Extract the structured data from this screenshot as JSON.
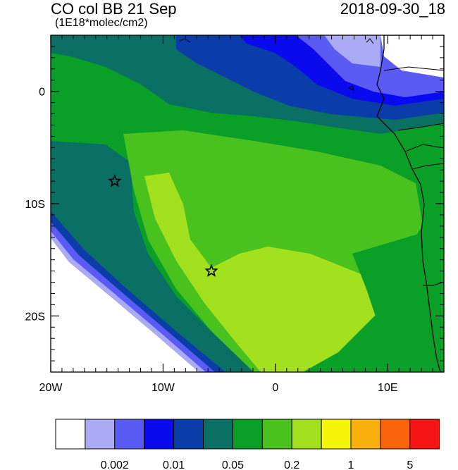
{
  "title": {
    "left": "CO col BB 21 Sep",
    "right": "2018-09-30_18",
    "units": "(1E18*molec/cm2)"
  },
  "map": {
    "lon_range": [
      -20,
      15
    ],
    "lat_range": [
      -25,
      5
    ],
    "x_ticks": [
      "20W",
      "10W",
      "0",
      "10E"
    ],
    "y_ticks": [
      "0",
      "10S",
      "20S"
    ],
    "markers": [
      {
        "name": "star-marker-1",
        "lon": -14.3,
        "lat": -8.0
      },
      {
        "name": "star-marker-2",
        "lon": -5.7,
        "lat": -16.0
      }
    ]
  },
  "colorbar": {
    "colors": [
      "#ffffff",
      "#aaaaf5",
      "#5a5af5",
      "#0a0aee",
      "#0a3caa",
      "#0a7064",
      "#0aa028",
      "#4ac21e",
      "#a3e01e",
      "#f5f50a",
      "#fab00a",
      "#fa640a",
      "#f51414"
    ],
    "labels": [
      {
        "text": "0.002",
        "after_box": 2
      },
      {
        "text": "0.01",
        "after_box": 4
      },
      {
        "text": "0.05",
        "after_box": 6
      },
      {
        "text": "0.2",
        "after_box": 8
      },
      {
        "text": "1",
        "after_box": 10
      },
      {
        "text": "5",
        "after_box": 12
      }
    ]
  }
}
